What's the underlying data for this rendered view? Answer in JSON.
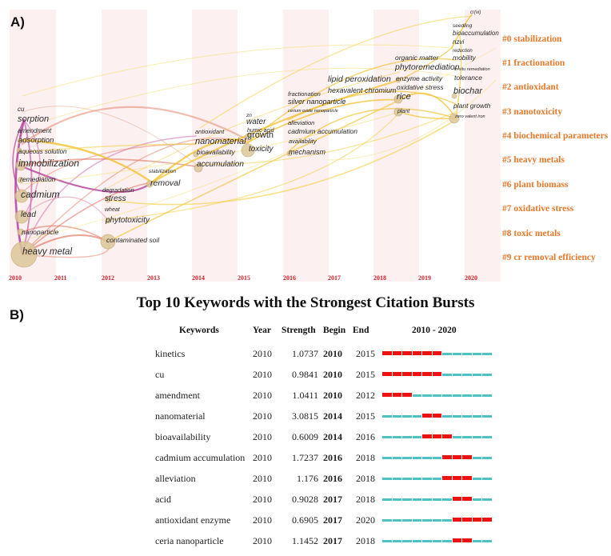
{
  "panel_a": {
    "label": "A)",
    "years": [
      "2010",
      "2011",
      "2012",
      "2013",
      "2014",
      "2015",
      "2016",
      "2017",
      "2018",
      "2019",
      "2020"
    ],
    "clusters": [
      "#0 stabilization",
      "#1 fractionation",
      "#2 antioxidant",
      "#3 nanotoxicity",
      "#4 biochemical parameters",
      "#5 heavy metals",
      "#6 plant biomass",
      "#7 oxidative stress",
      "#8 toxic metals",
      "#9 cr removal efficiency"
    ],
    "keywords": {
      "cu": "cu",
      "sorption": "sorption",
      "amendment": "amendment",
      "adsorption": "adsorption",
      "aqueous_solution": "aqueous solution",
      "immobilization": "immobilization",
      "remediation": "remediation",
      "cadmium": "cadmium",
      "lead": "lead",
      "nanoparticle": "nanoparticle",
      "heavy_metal": "heavy metal",
      "degradation": "degradation",
      "stress": "stress",
      "wheat": "wheat",
      "phytotoxicity": "phytotoxicity",
      "contaminated_soil": "contaminated soil",
      "stabilization": "stabilization",
      "removal": "removal",
      "antioxidant": "antioxidant",
      "nanomaterial": "nanomaterial",
      "bioavailability": "bioavailability",
      "accumulation": "accumulation",
      "zn": "zn",
      "water": "water",
      "humic_acid": "humic acid",
      "growth": "growth",
      "toxicity": "toxicity",
      "fractionation": "fractionation",
      "silver_nanoparticle": "silver nanoparticle",
      "cerium_oxide_nanoparticle": "cerium oxide nanoparticle",
      "alleviation": "alleviation",
      "cadmium_accumulation": "cadmium accumulation",
      "availability": "availability",
      "mechanism": "mechanism",
      "lipid_peroxidation": "lipid peroxidation",
      "hexavalent_chromium": "hexavalent chromium",
      "organic_matter": "organic matter",
      "phytoremediation": "phytoremediation",
      "enzyme_activity": "enzyme activity",
      "oxidative_stress": "oxidative stress",
      "rice": "rice",
      "plant": "plant",
      "cr_vi": "cr(vi)",
      "seedling": "seedling",
      "bioaccumulation": "bioaccumulation",
      "nzvi": "nzvi",
      "reduction": "reduction",
      "mobility": "mobility",
      "in_situ_remediation": "in situ remediation",
      "tolerance": "tolerance",
      "biochar": "biochar",
      "plant_growth": "plant growth",
      "zero_valent_iron": "zero valent iron"
    },
    "colors": {
      "stripe": "#fdf0f0",
      "year_label": "#c8202a",
      "cluster_label": "#e8782a"
    }
  },
  "panel_b": {
    "label": "B)",
    "title": "Top 10 Keywords with the Strongest Citation Bursts",
    "headers": {
      "keywords": "Keywords",
      "year": "Year",
      "strength": "Strength",
      "begin": "Begin",
      "end": "End",
      "range": "2010 - 2020"
    },
    "rows": [
      {
        "keyword": "kinetics",
        "year": "2010",
        "strength": "1.0737",
        "begin": "2010",
        "end": "2015"
      },
      {
        "keyword": "cu",
        "year": "2010",
        "strength": "0.9841",
        "begin": "2010",
        "end": "2015"
      },
      {
        "keyword": "amendment",
        "year": "2010",
        "strength": "1.0411",
        "begin": "2010",
        "end": "2012"
      },
      {
        "keyword": "nanomaterial",
        "year": "2010",
        "strength": "3.0815",
        "begin": "2014",
        "end": "2015"
      },
      {
        "keyword": "bioavailability",
        "year": "2010",
        "strength": "0.6009",
        "begin": "2014",
        "end": "2016"
      },
      {
        "keyword": "cadmium accumulation",
        "year": "2010",
        "strength": "1.7237",
        "begin": "2016",
        "end": "2018"
      },
      {
        "keyword": "alleviation",
        "year": "2010",
        "strength": "1.176",
        "begin": "2016",
        "end": "2018"
      },
      {
        "keyword": "acid",
        "year": "2010",
        "strength": "0.9028",
        "begin": "2017",
        "end": "2018"
      },
      {
        "keyword": "antioxidant enzyme",
        "year": "2010",
        "strength": "0.6905",
        "begin": "2017",
        "end": "2020"
      },
      {
        "keyword": "ceria nanoparticle",
        "year": "2010",
        "strength": "1.1452",
        "begin": "2017",
        "end": "2018"
      }
    ],
    "colors": {
      "burst": "#ee1111",
      "non_burst": "#4cc2c4"
    }
  },
  "chart_data": {
    "type": "table",
    "title": "Top 10 Keywords with the Strongest Citation Bursts",
    "columns": [
      "Keywords",
      "Year",
      "Strength",
      "Begin",
      "End",
      "2010 - 2020"
    ],
    "timeline_range": [
      2010,
      2020
    ],
    "rows": [
      [
        "kinetics",
        2010,
        1.0737,
        2010,
        2015
      ],
      [
        "cu",
        2010,
        0.9841,
        2010,
        2015
      ],
      [
        "amendment",
        2010,
        1.0411,
        2010,
        2012
      ],
      [
        "nanomaterial",
        2010,
        3.0815,
        2014,
        2015
      ],
      [
        "bioavailability",
        2010,
        0.6009,
        2014,
        2016
      ],
      [
        "cadmium accumulation",
        2010,
        1.7237,
        2016,
        2018
      ],
      [
        "alleviation",
        2010,
        1.176,
        2016,
        2018
      ],
      [
        "acid",
        2010,
        0.9028,
        2017,
        2018
      ],
      [
        "antioxidant enzyme",
        2010,
        0.6905,
        2017,
        2020
      ],
      [
        "ceria nanoparticle",
        2010,
        1.1452,
        2017,
        2018
      ]
    ]
  }
}
